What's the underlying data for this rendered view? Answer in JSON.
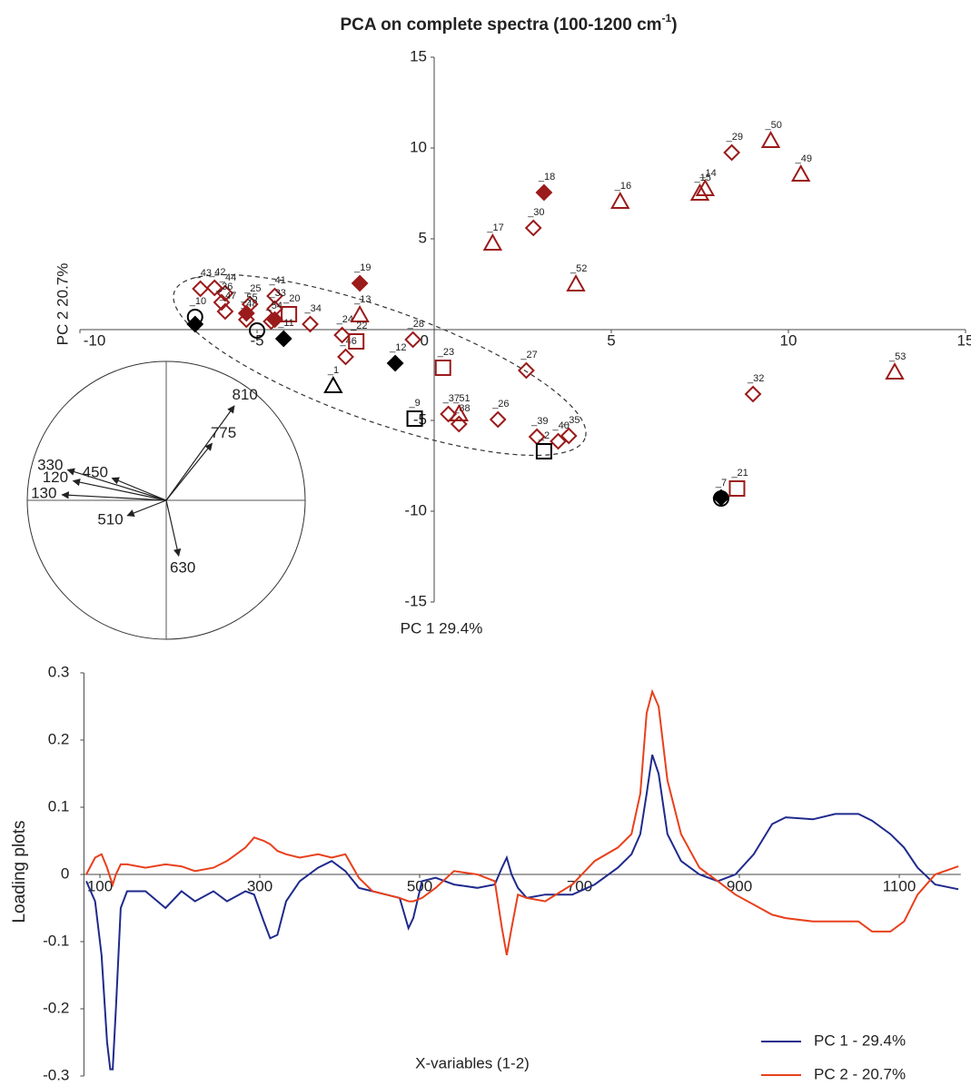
{
  "chart_data": [
    {
      "type": "scatter",
      "title": "PCA on complete spectra (100-1200 cm",
      "title_sup": "-1",
      "title_end": ")",
      "xlabel": "PC 1 29.4%",
      "ylabel": "PC 2 20.7%",
      "xlim": [
        -10,
        15
      ],
      "ylim": [
        -15,
        15
      ],
      "xticks": [
        -10,
        -5,
        0,
        5,
        10,
        15
      ],
      "yticks": [
        -15,
        -10,
        -5,
        5,
        10,
        15
      ],
      "series": [
        {
          "marker": "diamond",
          "color": "#9b1a1a",
          "filled": false,
          "x": [
            -6.6,
            -6.2,
            -5.9,
            -6.0,
            -5.9,
            -5.3,
            -5.2,
            -4.5,
            -4.5,
            -4.6,
            -3.5,
            -2.6,
            -2.5,
            -0.6,
            2.6,
            2.8,
            0.4,
            0.7,
            1.8,
            2.9,
            3.5,
            3.8,
            9.0,
            8.4
          ],
          "y": [
            2.25,
            2.3,
            2.0,
            1.5,
            1.0,
            0.55,
            1.4,
            1.85,
            1.15,
            0.45,
            0.3,
            -0.3,
            -1.5,
            -0.55,
            -2.25,
            5.6,
            -4.65,
            -5.2,
            -4.95,
            -5.9,
            -6.15,
            -5.85,
            -3.55,
            9.75
          ],
          "labels": [
            "_43",
            "_42",
            "_44",
            "_36",
            "_47",
            "_48",
            "_25",
            "_41",
            "_33",
            "_54",
            "_34",
            "_24",
            "_46",
            "_28",
            "_27",
            "_30",
            "_37",
            "_38",
            "_26",
            "_39",
            "_40",
            "_35",
            "_32",
            "_29"
          ]
        },
        {
          "marker": "diamond",
          "color": "#9b1a1a",
          "filled": true,
          "x": [
            3.1,
            -2.1,
            -5.3,
            -4.5
          ],
          "y": [
            7.55,
            2.55,
            0.9,
            0.55
          ],
          "labels": [
            "_18",
            "_19",
            "_55",
            null
          ]
        },
        {
          "marker": "triangle",
          "color": "#9b1a1a",
          "filled": false,
          "x": [
            1.65,
            5.25,
            7.5,
            7.65,
            9.5,
            10.35,
            4.0,
            -2.1,
            0.7,
            13.0
          ],
          "y": [
            4.75,
            7.05,
            7.5,
            7.75,
            10.4,
            8.55,
            2.5,
            0.8,
            -4.65,
            -2.35
          ],
          "labels": [
            "_17",
            "_16",
            "_15",
            "_14",
            "_50",
            "_49",
            "_52",
            "_13",
            "_51",
            "_53"
          ]
        },
        {
          "marker": "square",
          "color": "#9b1a1a",
          "filled": false,
          "x": [
            -4.1,
            -2.2,
            0.25,
            8.55
          ],
          "y": [
            0.85,
            -0.65,
            -2.1,
            -8.75
          ],
          "labels": [
            "_20",
            "_22",
            "_23",
            "_21"
          ]
        },
        {
          "marker": "diamond",
          "color": "#000000",
          "filled": true,
          "x": [
            -6.75,
            -4.25,
            -1.1,
            8.1
          ],
          "y": [
            0.3,
            -0.5,
            -1.85,
            -9.25
          ],
          "labels": [
            null,
            "_11",
            "_12",
            null
          ]
        },
        {
          "marker": "circle",
          "color": "#000000",
          "filled": false,
          "x": [
            -6.75,
            -5.0,
            8.1
          ],
          "y": [
            0.7,
            -0.05,
            -9.3
          ],
          "labels": [
            "_10",
            null,
            "_7"
          ]
        },
        {
          "marker": "square",
          "color": "#000000",
          "filled": false,
          "x": [
            -0.55,
            3.1
          ],
          "y": [
            -4.9,
            -6.7
          ],
          "labels": [
            "_9",
            "_2"
          ]
        },
        {
          "marker": "triangle",
          "color": "#000000",
          "filled": false,
          "x": [
            -2.85
          ],
          "y": [
            -3.1
          ],
          "labels": [
            "_1"
          ]
        }
      ],
      "loading_vectors": [
        {
          "label": "810",
          "x": 0.49,
          "y": 0.68
        },
        {
          "label": "775",
          "x": 0.33,
          "y": 0.41
        },
        {
          "label": "330",
          "x": -0.71,
          "y": 0.22
        },
        {
          "label": "450",
          "x": -0.39,
          "y": 0.16
        },
        {
          "label": "120",
          "x": -0.67,
          "y": 0.14
        },
        {
          "label": "130",
          "x": -0.75,
          "y": 0.04
        },
        {
          "label": "510",
          "x": -0.28,
          "y": -0.11
        },
        {
          "label": "630",
          "x": 0.09,
          "y": -0.4
        }
      ]
    },
    {
      "type": "line",
      "xlabel": "X-variables (1-2)",
      "ylabel": "Loading plots",
      "xlim": [
        80,
        1177
      ],
      "ylim": [
        -0.3,
        0.3
      ],
      "xticks": [
        100,
        300,
        500,
        700,
        900,
        1100
      ],
      "yticks": [
        0.3,
        0.2,
        0.1,
        0,
        -0.1,
        -0.2,
        -0.3
      ],
      "x": [
        83,
        94,
        102,
        109,
        113,
        116,
        120,
        126,
        134,
        157,
        182,
        202,
        219,
        242,
        259,
        282,
        293,
        305,
        313,
        322,
        333,
        350,
        373,
        390,
        407,
        424,
        441,
        458,
        475,
        486,
        492,
        503,
        520,
        543,
        572,
        594,
        603,
        609,
        615,
        623,
        634,
        657,
        691,
        719,
        748,
        765,
        776,
        784,
        791,
        799,
        810,
        827,
        850,
        873,
        895,
        918,
        941,
        958,
        992,
        1020,
        1049,
        1066,
        1089,
        1106,
        1123,
        1145,
        1174
      ],
      "series": [
        {
          "name": "PC 1 - 29.4%",
          "color": "#1f2a8c",
          "values": [
            -0.01,
            -0.04,
            -0.12,
            -0.25,
            -0.29,
            -0.29,
            -0.2,
            -0.05,
            -0.025,
            -0.025,
            -0.05,
            -0.025,
            -0.04,
            -0.025,
            -0.04,
            -0.025,
            -0.03,
            -0.07,
            -0.095,
            -0.09,
            -0.04,
            -0.01,
            0.01,
            0.02,
            0.005,
            -0.02,
            -0.025,
            -0.03,
            -0.035,
            -0.08,
            -0.065,
            -0.01,
            -0.005,
            -0.015,
            -0.02,
            -0.015,
            0.01,
            0.025,
            0.0,
            -0.02,
            -0.035,
            -0.03,
            -0.03,
            -0.015,
            0.01,
            0.03,
            0.06,
            0.12,
            0.178,
            0.15,
            0.06,
            0.02,
            0.0,
            -0.01,
            0.0,
            0.03,
            0.075,
            0.085,
            0.082,
            0.09,
            0.09,
            0.08,
            0.06,
            0.04,
            0.01,
            -0.015,
            -0.022
          ]
        },
        {
          "name": "PC 2 - 20.7%",
          "color": "#e8401c",
          "values": [
            0.0,
            0.025,
            0.03,
            0.01,
            -0.005,
            -0.015,
            0.0,
            0.015,
            0.015,
            0.01,
            0.015,
            0.012,
            0.005,
            0.01,
            0.02,
            0.04,
            0.055,
            0.05,
            0.045,
            0.035,
            0.03,
            0.025,
            0.03,
            0.025,
            0.03,
            -0.005,
            -0.025,
            -0.03,
            -0.035,
            -0.04,
            -0.04,
            -0.035,
            -0.02,
            0.005,
            0.0,
            -0.01,
            -0.08,
            -0.12,
            -0.08,
            -0.03,
            -0.035,
            -0.04,
            -0.015,
            0.02,
            0.04,
            0.06,
            0.12,
            0.24,
            0.272,
            0.25,
            0.14,
            0.06,
            0.01,
            -0.01,
            -0.03,
            -0.045,
            -0.06,
            -0.065,
            -0.07,
            -0.07,
            -0.07,
            -0.085,
            -0.085,
            -0.07,
            -0.03,
            0.0,
            0.012
          ]
        }
      ]
    }
  ]
}
